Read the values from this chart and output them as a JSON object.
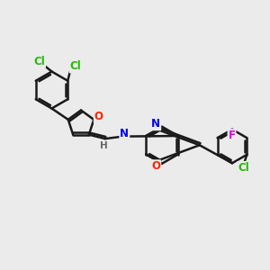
{
  "background_color": "#ebebeb",
  "bond_color": "#1a1a1a",
  "bond_width": 1.8,
  "atom_colors": {
    "Cl": "#22bb00",
    "O": "#ff2200",
    "N": "#0000ee",
    "F": "#dd00dd",
    "H": "#666666",
    "C": "#1a1a1a"
  },
  "font_size": 8.5,
  "fig_size": [
    3.0,
    3.0
  ],
  "dpi": 100
}
